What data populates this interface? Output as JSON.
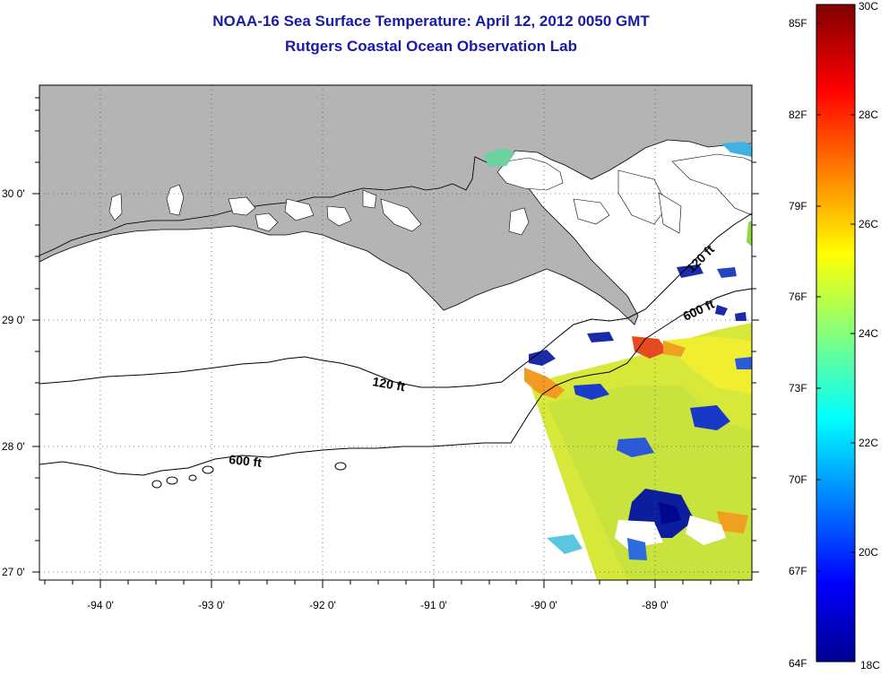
{
  "title": {
    "line1": "NOAA-16 Sea Surface Temperature:  April 12, 2012 0050 GMT",
    "line2": "Rutgers Coastal Ocean Observation Lab"
  },
  "map": {
    "lat_labels": [
      "30 0'",
      "29 0'",
      "28 0'",
      "27 0'"
    ],
    "lon_labels": [
      "-94 0'",
      "-93 0'",
      "-92 0'",
      "-91 0'",
      "-90 0'",
      "-89 0'"
    ],
    "contour_labels": [
      "120 ft",
      "600 ft",
      "120 ft",
      "600 ft"
    ],
    "colors": {
      "land": "#b4b4b4",
      "contour": "#000000"
    }
  },
  "colorbar": {
    "fahrenheit": [
      "85F",
      "82F",
      "79F",
      "76F",
      "73F",
      "70F",
      "67F",
      "64F"
    ],
    "celsius": [
      "30C",
      "28C",
      "26C",
      "24C",
      "22C",
      "20C",
      "18C"
    ],
    "range_c": [
      18,
      30
    ]
  }
}
